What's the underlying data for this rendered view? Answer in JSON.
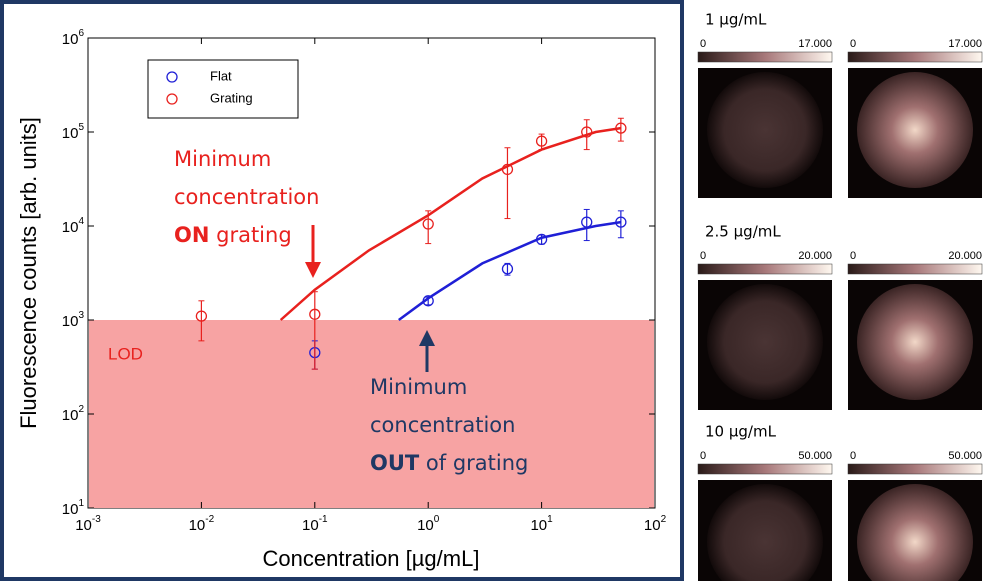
{
  "chart_data": {
    "type": "scatter",
    "x_label": "Concentration [µg/mL]",
    "y_label": "Fluorescence counts [arb. units]",
    "xlim": [
      0.001,
      100
    ],
    "ylim": [
      10,
      1000000
    ],
    "log_x": true,
    "log_y": true,
    "xticks": [
      {
        "value": 0.001,
        "label": "10",
        "exponent": "-3"
      },
      {
        "value": 0.01,
        "label": "10",
        "exponent": "-2"
      },
      {
        "value": 0.1,
        "label": "10",
        "exponent": "-1"
      },
      {
        "value": 1,
        "label": "10",
        "exponent": "0"
      },
      {
        "value": 10,
        "label": "10",
        "exponent": "1"
      },
      {
        "value": 100,
        "label": "10",
        "exponent": "2"
      }
    ],
    "yticks": [
      {
        "value": 10,
        "label": "10",
        "exponent": "1"
      },
      {
        "value": 100,
        "label": "10",
        "exponent": "2"
      },
      {
        "value": 1000,
        "label": "10",
        "exponent": "3"
      },
      {
        "value": 10000,
        "label": "10",
        "exponent": "4"
      },
      {
        "value": 100000,
        "label": "10",
        "exponent": "5"
      },
      {
        "value": 1000000,
        "label": "10",
        "exponent": "6"
      }
    ],
    "legend": "top-left",
    "series": [
      {
        "name": "Flat",
        "color": "#1f1fd6",
        "x": [
          0.1,
          1,
          5,
          10,
          25,
          50
        ],
        "values": [
          450,
          1600,
          3500,
          7200,
          11000,
          11000
        ],
        "errors": [
          150,
          150,
          500,
          800,
          4000,
          3500
        ],
        "fit": {
          "x": [
            0.55,
            1,
            3,
            10,
            30,
            50
          ],
          "values": [
            1000,
            1700,
            4000,
            7500,
            10000,
            11000
          ]
        }
      },
      {
        "name": "Grating",
        "color": "#e8211e",
        "x": [
          0.01,
          0.1,
          1,
          5,
          10,
          25,
          50
        ],
        "values": [
          1100,
          1150,
          10500,
          40000,
          80000,
          100000,
          110000
        ],
        "errors": [
          500,
          850,
          4000,
          28000,
          15000,
          35000,
          30000
        ],
        "fit": {
          "x": [
            0.05,
            0.1,
            0.3,
            1,
            3,
            10,
            30,
            50
          ],
          "values": [
            1000,
            2100,
            5500,
            13000,
            32000,
            65000,
            100000,
            110000
          ]
        }
      }
    ],
    "lod": {
      "value": 1000,
      "label": "LOD"
    },
    "annotations": {
      "on": {
        "line1": "Minimum",
        "line2": "concentration",
        "bold": "ON",
        "rest": " grating"
      },
      "out": {
        "line1": "Minimum",
        "line2": "concentration",
        "bold": "OUT",
        "rest": " of grating"
      }
    }
  },
  "panels": [
    {
      "label": "1 µg/mL",
      "min": "0",
      "max": "17.000"
    },
    {
      "label": "2.5 µg/mL",
      "min": "0",
      "max": "20.000"
    },
    {
      "label": "10 µg/mL",
      "min": "0",
      "max": "50.000"
    }
  ]
}
